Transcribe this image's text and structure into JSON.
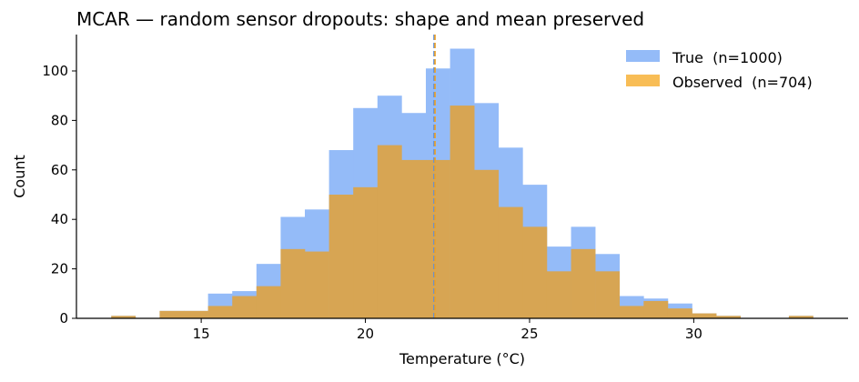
{
  "chart_data": {
    "type": "bar",
    "title": "MCAR — random sensor dropouts: shape and mean preserved",
    "xlabel": "Temperature (°C)",
    "ylabel": "Count",
    "xlim": [
      11.2,
      34.7
    ],
    "ylim": [
      0,
      114.7
    ],
    "xticks": [
      15,
      20,
      25,
      30
    ],
    "yticks": [
      0,
      20,
      40,
      60,
      80,
      100
    ],
    "grid": false,
    "legend_position": "top-right",
    "bin_start": 12.26,
    "bin_width": 0.737,
    "series": [
      {
        "name": "True  (n=1000)",
        "color": "#94bbf8",
        "values": [
          1,
          0,
          3,
          3,
          10,
          11,
          22,
          41,
          44,
          68,
          85,
          90,
          83,
          101,
          109,
          87,
          69,
          54,
          29,
          37,
          26,
          9,
          8,
          6,
          2,
          1,
          0,
          0,
          1
        ],
        "mean": 22.09,
        "mean_color": "#5b8fdf"
      },
      {
        "name": "Observed  (n=704)",
        "color": "#d7a553",
        "legend_color": "#f8bd56",
        "values": [
          1,
          0,
          3,
          3,
          5,
          9,
          13,
          28,
          27,
          50,
          53,
          70,
          64,
          64,
          86,
          60,
          45,
          37,
          19,
          28,
          19,
          5,
          7,
          4,
          2,
          1,
          0,
          0,
          1
        ],
        "mean": 22.12,
        "mean_color": "#f0a020"
      }
    ]
  }
}
